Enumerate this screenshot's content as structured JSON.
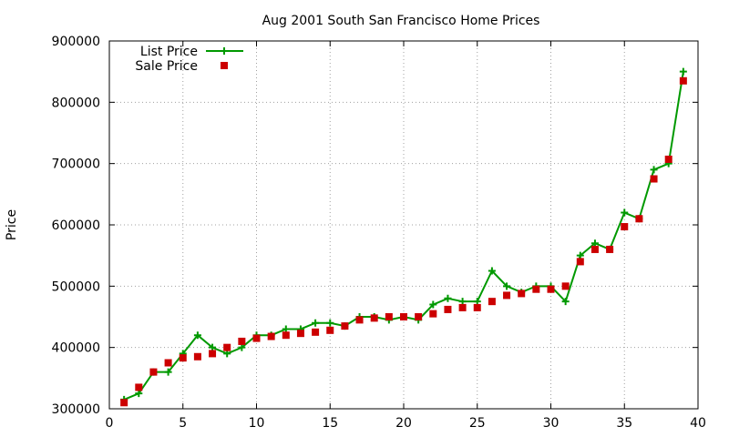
{
  "chart_data": {
    "type": "line",
    "title": "Aug 2001 South San Francisco Home Prices",
    "xlabel": "",
    "ylabel": "Price",
    "xlim": [
      0,
      40
    ],
    "ylim": [
      300000,
      900000
    ],
    "x_ticks": [
      0,
      5,
      10,
      15,
      20,
      25,
      30,
      35,
      40
    ],
    "y_ticks": [
      300000,
      400000,
      500000,
      600000,
      700000,
      800000,
      900000
    ],
    "grid": true,
    "legend_position": "top-left",
    "series": [
      {
        "name": "List Price",
        "style": "line-with-plus",
        "color": "#009900",
        "x": [
          1,
          2,
          3,
          4,
          5,
          6,
          7,
          8,
          9,
          10,
          11,
          12,
          13,
          14,
          15,
          16,
          17,
          18,
          19,
          20,
          21,
          22,
          23,
          24,
          25,
          26,
          27,
          28,
          29,
          30,
          31,
          32,
          33,
          34,
          35,
          36,
          37,
          38,
          39
        ],
        "values": [
          315000,
          325000,
          360000,
          360000,
          390000,
          420000,
          400000,
          390000,
          400000,
          420000,
          420000,
          430000,
          430000,
          440000,
          440000,
          435000,
          450000,
          450000,
          445000,
          450000,
          445000,
          470000,
          480000,
          475000,
          475000,
          525000,
          500000,
          490000,
          500000,
          500000,
          475000,
          550000,
          570000,
          560000,
          620000,
          610000,
          690000,
          700000,
          850000
        ]
      },
      {
        "name": "Sale Price",
        "style": "square-markers",
        "color": "#cc0000",
        "x": [
          1,
          2,
          3,
          4,
          5,
          6,
          7,
          8,
          9,
          10,
          11,
          12,
          13,
          14,
          15,
          16,
          17,
          18,
          19,
          20,
          21,
          22,
          23,
          24,
          25,
          26,
          27,
          28,
          29,
          30,
          31,
          32,
          33,
          34,
          35,
          36,
          37,
          38,
          39
        ],
        "values": [
          310000,
          335000,
          360000,
          375000,
          383000,
          385000,
          390000,
          400000,
          410000,
          415000,
          418000,
          420000,
          423000,
          425000,
          428000,
          435000,
          445000,
          448000,
          450000,
          450000,
          450000,
          455000,
          462000,
          465000,
          465000,
          475000,
          485000,
          488000,
          495000,
          495000,
          500000,
          540000,
          560000,
          560000,
          597000,
          610000,
          675000,
          707000,
          835000
        ]
      }
    ]
  }
}
